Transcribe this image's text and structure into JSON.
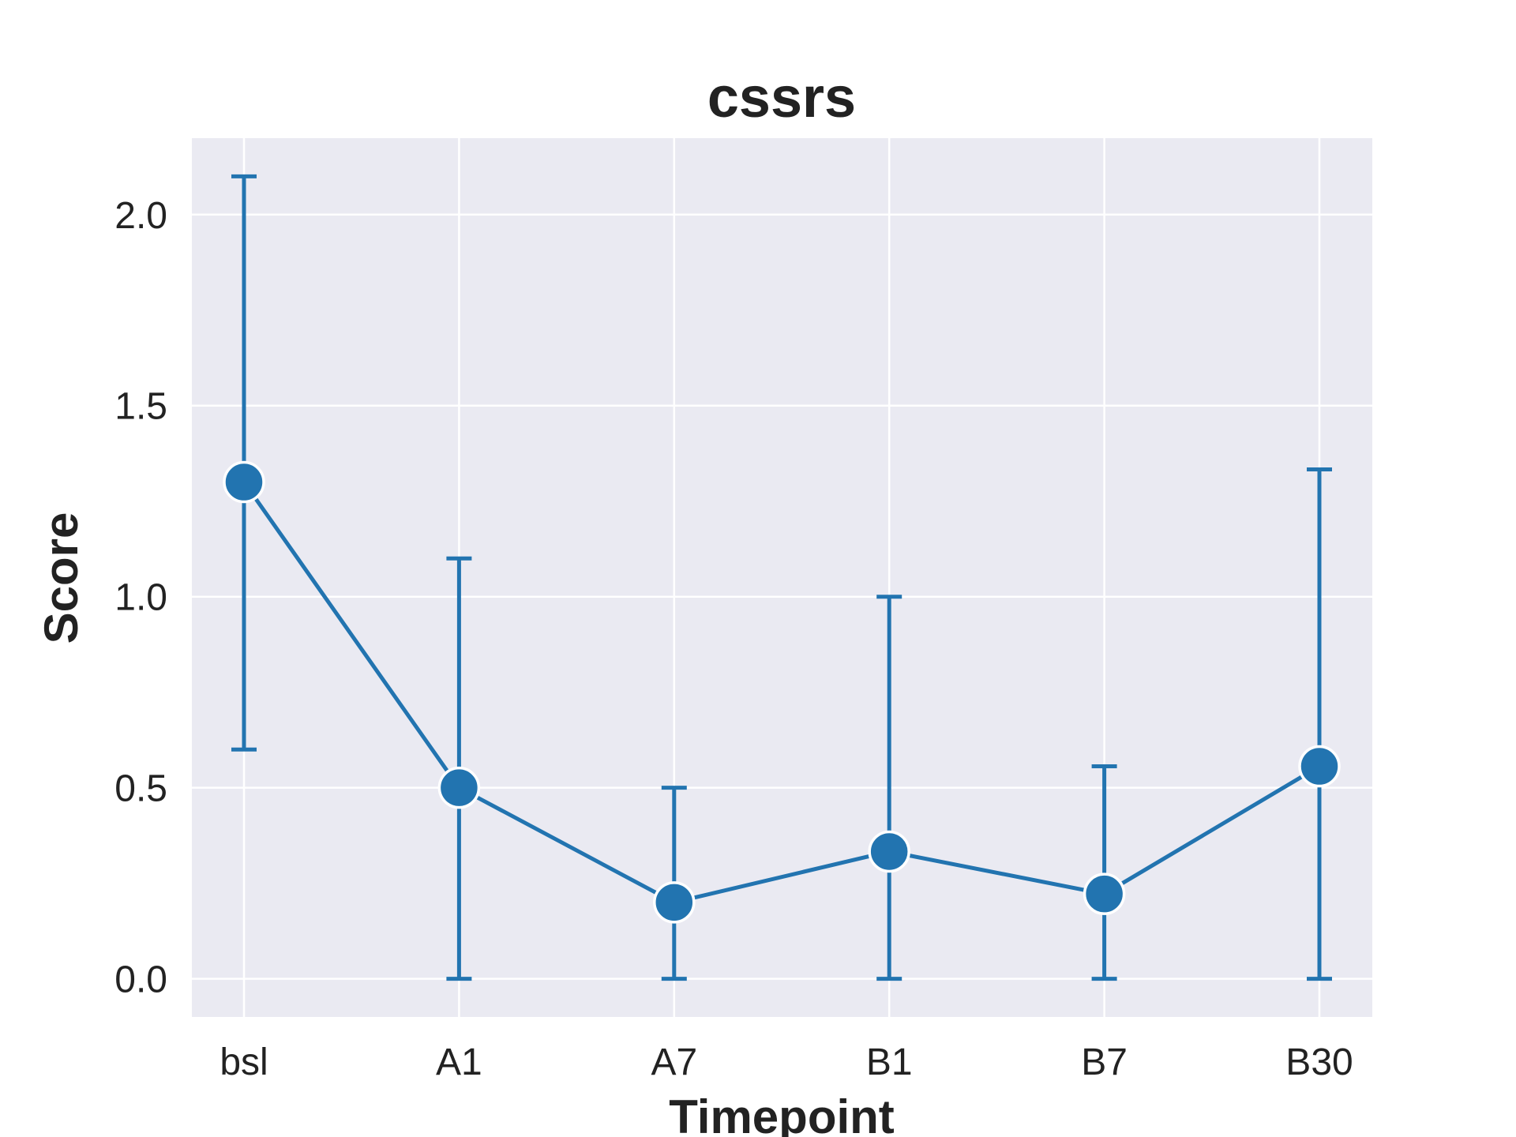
{
  "chart_data": {
    "type": "line",
    "title": "cssrs",
    "xlabel": "Timepoint",
    "ylabel": "Score",
    "categories": [
      "bsl",
      "A1",
      "A7",
      "B1",
      "B7",
      "B30"
    ],
    "ylim": [
      -0.1,
      2.2
    ],
    "yticks": [
      "0.0",
      "0.5",
      "1.0",
      "1.5",
      "2.0"
    ],
    "grid": true,
    "series": [
      {
        "values": [
          1.3,
          0.5,
          0.2,
          0.333,
          0.222,
          0.556
        ],
        "error_low": [
          0.6,
          0.0,
          0.0,
          0.0,
          0.0,
          0.0
        ],
        "error_high": [
          2.1,
          1.1,
          0.5,
          1.0,
          0.556,
          1.333
        ],
        "color": "#2274B0"
      }
    ],
    "background_color": "#EAEAF2",
    "grid_color": "#FFFFFF"
  }
}
